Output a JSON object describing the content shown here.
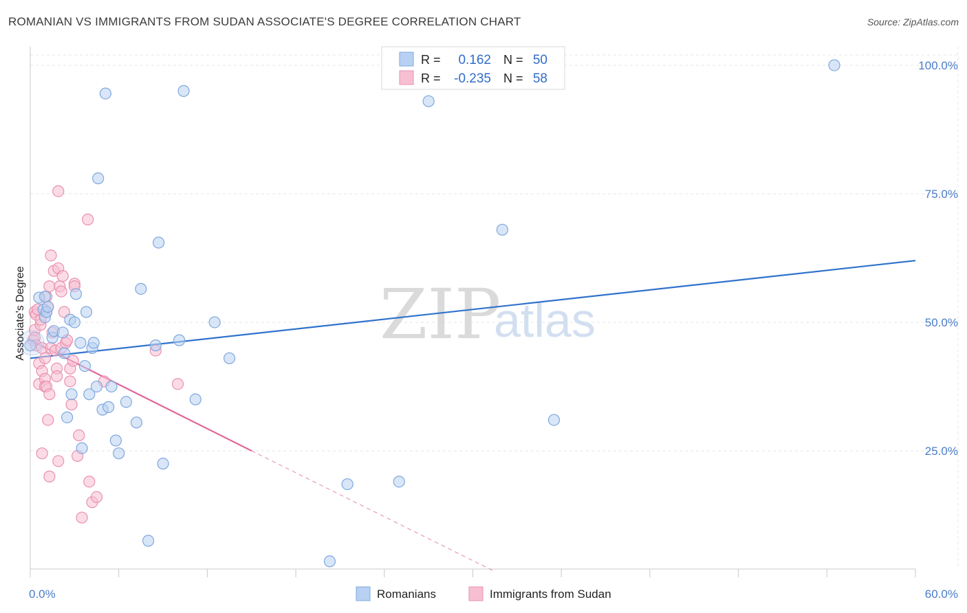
{
  "title": "ROMANIAN VS IMMIGRANTS FROM SUDAN ASSOCIATE'S DEGREE CORRELATION CHART",
  "source": "Source: ZipAtlas.com",
  "watermark": {
    "zip": "ZIP",
    "atlas": "atlas"
  },
  "colors": {
    "blue_fill": "#b8d1f3",
    "blue_stroke": "#7fa7dd",
    "blue_line": "#2f72cc",
    "pink_fill": "#f7bfd2",
    "pink_stroke": "#e98fb0",
    "pink_line": "#e0679a",
    "grid": "#e4e4e4",
    "axis_text": "#4a7cc7"
  },
  "legend": {
    "rows": [
      {
        "r_label": "R =",
        "r_value": "0.162",
        "n_label": "N =",
        "n_value": "50"
      },
      {
        "r_label": "R =",
        "r_value": "-0.235",
        "n_label": "N =",
        "n_value": "58"
      }
    ]
  },
  "chart_data": {
    "type": "scatter",
    "xlabel": "",
    "ylabel": "Associate's Degree",
    "xlim": [
      0,
      60
    ],
    "ylim": [
      2,
      102
    ],
    "x_tick_labels": [
      {
        "value": 0,
        "label": "0.0%"
      },
      {
        "value": 60,
        "label": "60.0%"
      }
    ],
    "y_tick_labels": [
      {
        "value": 100,
        "label": "100.0%"
      },
      {
        "value": 75,
        "label": "75.0%"
      },
      {
        "value": 50,
        "label": "50.0%"
      },
      {
        "value": 25,
        "label": "25.0%"
      }
    ],
    "series": [
      {
        "name": "Romanians",
        "color": "blue",
        "trend": {
          "x0": 0,
          "y0": 43.0,
          "x1": 60,
          "y1": 62.0
        },
        "points": [
          [
            0.0,
            45.5
          ],
          [
            0.6,
            54.8
          ],
          [
            0.9,
            52.5
          ],
          [
            1.0,
            51.0
          ],
          [
            1.0,
            55.0
          ],
          [
            1.1,
            52.0
          ],
          [
            1.2,
            53.0
          ],
          [
            1.5,
            47.0
          ],
          [
            1.6,
            48.3
          ],
          [
            2.2,
            48.0
          ],
          [
            2.3,
            44.0
          ],
          [
            2.5,
            31.5
          ],
          [
            2.7,
            50.5
          ],
          [
            2.8,
            36.0
          ],
          [
            3.0,
            50.0
          ],
          [
            3.1,
            55.5
          ],
          [
            3.4,
            46.0
          ],
          [
            3.5,
            25.5
          ],
          [
            3.7,
            41.5
          ],
          [
            3.8,
            52.0
          ],
          [
            4.0,
            36.0
          ],
          [
            4.2,
            45.0
          ],
          [
            4.3,
            46.0
          ],
          [
            4.5,
            37.5
          ],
          [
            4.6,
            78.0
          ],
          [
            4.9,
            33.0
          ],
          [
            5.1,
            94.5
          ],
          [
            5.3,
            33.5
          ],
          [
            5.5,
            37.5
          ],
          [
            5.8,
            27.0
          ],
          [
            6.0,
            24.5
          ],
          [
            6.5,
            34.5
          ],
          [
            7.2,
            30.5
          ],
          [
            7.5,
            56.5
          ],
          [
            8.0,
            7.5
          ],
          [
            8.5,
            45.5
          ],
          [
            8.7,
            65.5
          ],
          [
            9.0,
            22.5
          ],
          [
            10.1,
            46.5
          ],
          [
            10.4,
            95.0
          ],
          [
            11.2,
            35.0
          ],
          [
            12.5,
            50.0
          ],
          [
            13.5,
            43.0
          ],
          [
            20.3,
            3.5
          ],
          [
            21.5,
            18.5
          ],
          [
            25.0,
            19.0
          ],
          [
            27.0,
            93.0
          ],
          [
            32.0,
            68.0
          ],
          [
            35.5,
            31.0
          ],
          [
            54.5,
            100.0
          ]
        ]
      },
      {
        "name": "Immigrants from Sudan",
        "color": "pink",
        "trend": {
          "x0": 0,
          "y0": 46.5,
          "x1": 15.0,
          "y1": 25.0,
          "dash_x1": 31.5,
          "dash_y1": 1.5
        },
        "points": [
          [
            0.2,
            46.5
          ],
          [
            0.3,
            48.5
          ],
          [
            0.3,
            47.0
          ],
          [
            0.3,
            52.0
          ],
          [
            0.4,
            51.5
          ],
          [
            0.4,
            45.5
          ],
          [
            0.5,
            52.5
          ],
          [
            0.6,
            42.0
          ],
          [
            0.6,
            38.0
          ],
          [
            0.7,
            49.5
          ],
          [
            0.7,
            50.5
          ],
          [
            0.8,
            40.5
          ],
          [
            0.8,
            45.0
          ],
          [
            0.8,
            24.5
          ],
          [
            1.0,
            39.0
          ],
          [
            1.0,
            43.0
          ],
          [
            1.0,
            37.5
          ],
          [
            1.1,
            55.0
          ],
          [
            1.1,
            52.0
          ],
          [
            1.1,
            37.5
          ],
          [
            1.2,
            53.0
          ],
          [
            1.2,
            31.0
          ],
          [
            1.3,
            57.0
          ],
          [
            1.3,
            36.0
          ],
          [
            1.3,
            20.0
          ],
          [
            1.4,
            63.0
          ],
          [
            1.4,
            45.0
          ],
          [
            1.5,
            48.0
          ],
          [
            1.6,
            60.0
          ],
          [
            1.7,
            44.5
          ],
          [
            1.8,
            41.0
          ],
          [
            1.8,
            39.5
          ],
          [
            1.9,
            75.5
          ],
          [
            1.9,
            60.5
          ],
          [
            1.9,
            23.0
          ],
          [
            2.0,
            57.0
          ],
          [
            2.1,
            45.0
          ],
          [
            2.1,
            56.0
          ],
          [
            2.2,
            59.0
          ],
          [
            2.3,
            52.0
          ],
          [
            2.4,
            46.0
          ],
          [
            2.5,
            46.5
          ],
          [
            2.7,
            38.5
          ],
          [
            2.7,
            41.0
          ],
          [
            2.8,
            34.0
          ],
          [
            2.9,
            42.5
          ],
          [
            3.0,
            57.5
          ],
          [
            3.0,
            57.0
          ],
          [
            3.2,
            24.0
          ],
          [
            3.3,
            28.0
          ],
          [
            3.5,
            12.0
          ],
          [
            3.9,
            70.0
          ],
          [
            4.0,
            19.0
          ],
          [
            4.2,
            15.0
          ],
          [
            4.5,
            16.0
          ],
          [
            5.0,
            38.5
          ],
          [
            8.5,
            44.5
          ],
          [
            10.0,
            38.0
          ]
        ]
      }
    ],
    "bottom_legend": [
      "Romanians",
      "Immigrants from Sudan"
    ]
  }
}
